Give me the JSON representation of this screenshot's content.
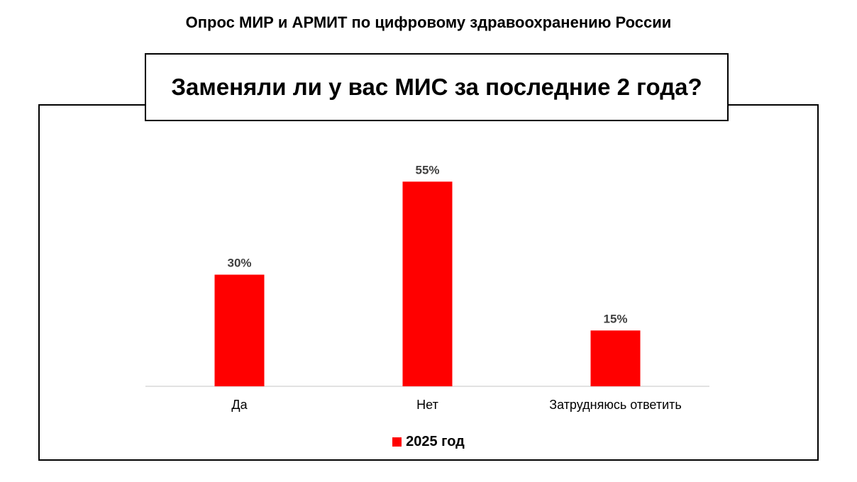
{
  "header": {
    "title": "Опрос МИР и АРМИТ по цифровому здравоохранению России"
  },
  "chart_data": {
    "type": "bar",
    "title": "Заменяли ли у вас МИС за последние 2 года?",
    "categories": [
      "Да",
      "Нет",
      "Затрудняюсь ответить"
    ],
    "series": [
      {
        "name": "2025 год",
        "values": [
          30,
          55,
          15
        ],
        "labels": [
          "30%",
          "55%",
          "15%"
        ],
        "color": "#ff0000"
      }
    ],
    "ylim": [
      0,
      60
    ],
    "grid": false,
    "legend_position": "bottom"
  },
  "colors": {
    "bar": "#ff0000",
    "axis": "#d9d9d9",
    "data_label": "#404040"
  }
}
